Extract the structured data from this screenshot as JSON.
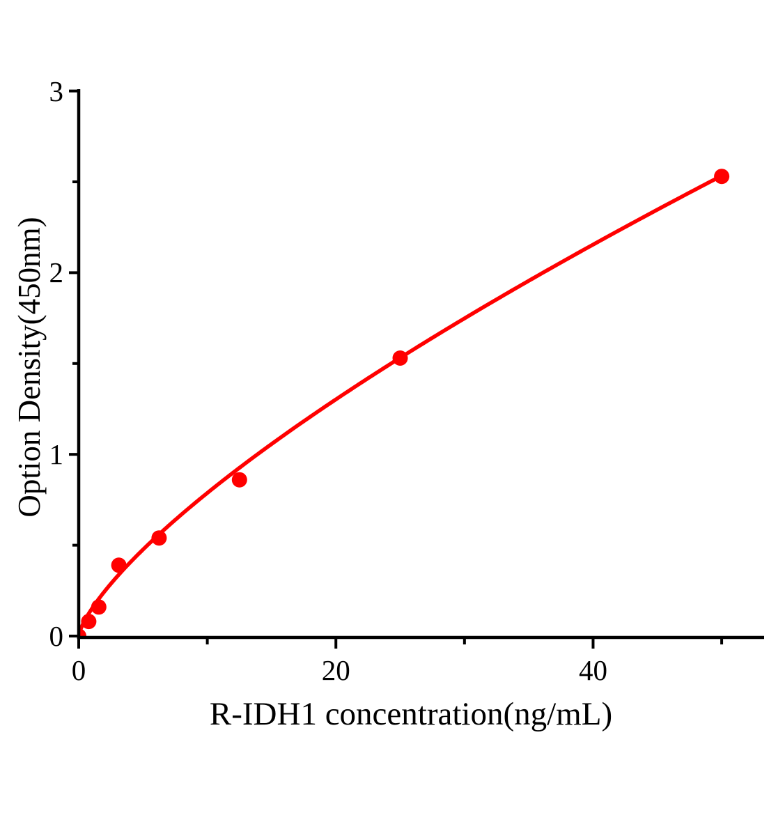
{
  "figure": {
    "background": "#ffffff"
  },
  "chart_data": {
    "type": "scatter",
    "title": "",
    "xlabel": "R-IDH1 concentration(ng/mL)",
    "ylabel": "Option Density(450nm)",
    "x": [
      0,
      0.78,
      1.56,
      3.12,
      6.25,
      12.5,
      25,
      50
    ],
    "y": [
      0,
      0.08,
      0.16,
      0.39,
      0.54,
      0.86,
      1.53,
      2.53
    ],
    "xlim": [
      0,
      53.3
    ],
    "ylim": [
      0,
      3.01
    ],
    "xticks": [
      0,
      20,
      40
    ],
    "xtick_labels": [
      "0",
      "20",
      "40"
    ],
    "yticks": [
      0,
      1,
      2,
      3
    ],
    "ytick_labels": [
      "0",
      "1",
      "2",
      "3"
    ],
    "xminor": [
      10,
      30,
      50
    ],
    "yminor": [
      0.5,
      1.5,
      2.5
    ],
    "fit": {
      "type": "power",
      "a": 0.148,
      "b": 0.726,
      "range": [
        0,
        50
      ]
    },
    "marker_color": "#ff0000",
    "line_color": "#ff0000",
    "axis_color": "#000000",
    "grid": false,
    "legend": null
  }
}
